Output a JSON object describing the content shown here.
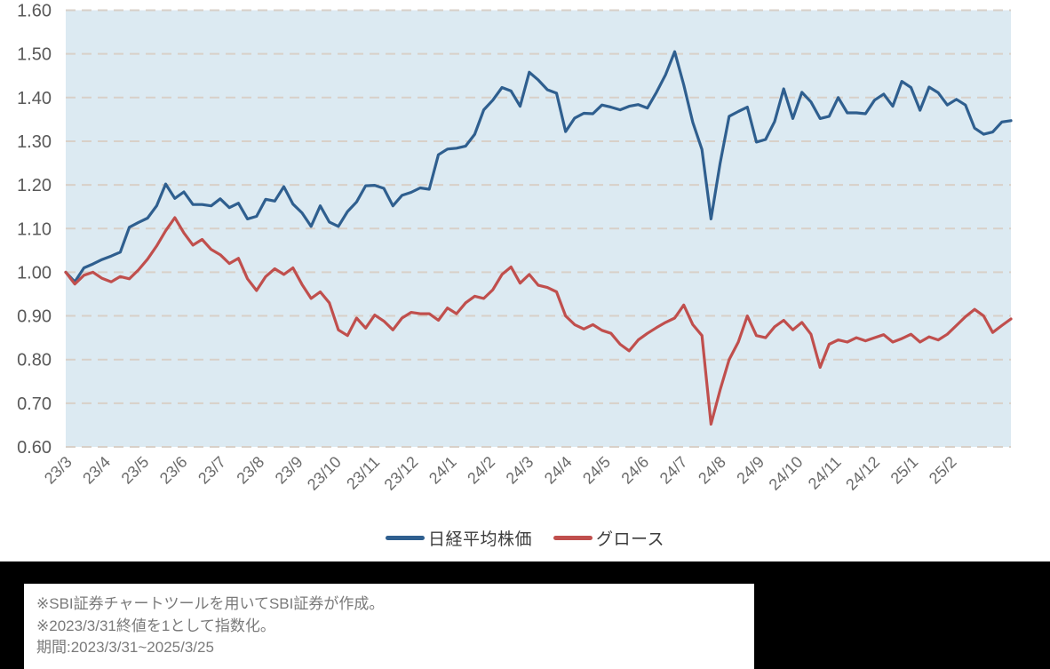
{
  "chart_data": {
    "type": "line",
    "title": "",
    "x_axis": {
      "tick_labels": [
        "23/3",
        "23/4",
        "23/5",
        "23/6",
        "23/7",
        "23/8",
        "23/9",
        "23/10",
        "23/11",
        "23/12",
        "24/1",
        "24/2",
        "24/3",
        "24/4",
        "24/5",
        "24/6",
        "24/7",
        "24/8",
        "24/9",
        "24/10",
        "24/11",
        "24/12",
        "25/1",
        "25/2"
      ],
      "note": "monthly ticks, data sampled ~weekly from 2023/3/31 to 2025/3/25"
    },
    "y_axis": {
      "tick_labels": [
        "1.60",
        "1.50",
        "1.40",
        "1.30",
        "1.20",
        "1.10",
        "1.00",
        "0.90",
        "0.80",
        "0.70",
        "0.60"
      ],
      "min": 0.6,
      "max": 1.6,
      "grid": "dashed"
    },
    "series": [
      {
        "name": "日経平均株価",
        "color": "#2F5F8F",
        "values": [
          1.0,
          0.978,
          1.01,
          1.019,
          1.029,
          1.037,
          1.046,
          1.103,
          1.114,
          1.124,
          1.152,
          1.202,
          1.169,
          1.184,
          1.155,
          1.155,
          1.152,
          1.168,
          1.148,
          1.158,
          1.122,
          1.128,
          1.167,
          1.163,
          1.196,
          1.156,
          1.136,
          1.105,
          1.152,
          1.115,
          1.105,
          1.139,
          1.161,
          1.198,
          1.199,
          1.192,
          1.152,
          1.176,
          1.183,
          1.193,
          1.19,
          1.269,
          1.282,
          1.284,
          1.289,
          1.316,
          1.372,
          1.394,
          1.423,
          1.415,
          1.38,
          1.458,
          1.44,
          1.418,
          1.41,
          1.322,
          1.353,
          1.364,
          1.363,
          1.383,
          1.378,
          1.372,
          1.38,
          1.384,
          1.376,
          1.412,
          1.452,
          1.505,
          1.429,
          1.343,
          1.281,
          1.122,
          1.249,
          1.357,
          1.368,
          1.378,
          1.298,
          1.304,
          1.345,
          1.42,
          1.352,
          1.412,
          1.39,
          1.352,
          1.357,
          1.4,
          1.365,
          1.365,
          1.363,
          1.394,
          1.408,
          1.38,
          1.437,
          1.423,
          1.371,
          1.424,
          1.411,
          1.383,
          1.396,
          1.383,
          1.33,
          1.316,
          1.321,
          1.344,
          1.347
        ]
      },
      {
        "name": "グロース",
        "color": "#C04F4D",
        "values": [
          1.0,
          0.973,
          0.993,
          1.0,
          0.986,
          0.978,
          0.99,
          0.985,
          1.005,
          1.03,
          1.06,
          1.095,
          1.125,
          1.09,
          1.062,
          1.075,
          1.052,
          1.04,
          1.02,
          1.032,
          0.985,
          0.958,
          0.99,
          1.008,
          0.995,
          1.01,
          0.972,
          0.94,
          0.955,
          0.93,
          0.868,
          0.855,
          0.895,
          0.872,
          0.902,
          0.888,
          0.868,
          0.895,
          0.908,
          0.905,
          0.905,
          0.89,
          0.918,
          0.905,
          0.93,
          0.945,
          0.94,
          0.96,
          0.995,
          1.012,
          0.975,
          0.995,
          0.97,
          0.965,
          0.955,
          0.9,
          0.88,
          0.87,
          0.88,
          0.867,
          0.86,
          0.835,
          0.82,
          0.845,
          0.86,
          0.873,
          0.885,
          0.895,
          0.925,
          0.88,
          0.855,
          0.652,
          0.73,
          0.8,
          0.84,
          0.9,
          0.855,
          0.85,
          0.875,
          0.89,
          0.868,
          0.885,
          0.858,
          0.782,
          0.835,
          0.845,
          0.84,
          0.85,
          0.843,
          0.85,
          0.857,
          0.84,
          0.848,
          0.858,
          0.84,
          0.852,
          0.845,
          0.858,
          0.878,
          0.898,
          0.915,
          0.9,
          0.862,
          0.878,
          0.893
        ]
      }
    ],
    "plot_background": "#DCEAF2",
    "gridline_color": "#D8D0C8",
    "y_label_color": "#595959",
    "x_label_color": "#6B6B6B",
    "legend_position": "bottom-center"
  },
  "legend": {
    "items": [
      {
        "label": "日経平均株価",
        "color": "#2F5F8F"
      },
      {
        "label": "グロース",
        "color": "#C04F4D"
      }
    ]
  },
  "footnote": {
    "lines": [
      "※SBI証券チャートツールを用いてSBI証券が作成。",
      "※2023/3/31終値を1として指数化。",
      "期間:2023/3/31~2025/3/25"
    ]
  }
}
